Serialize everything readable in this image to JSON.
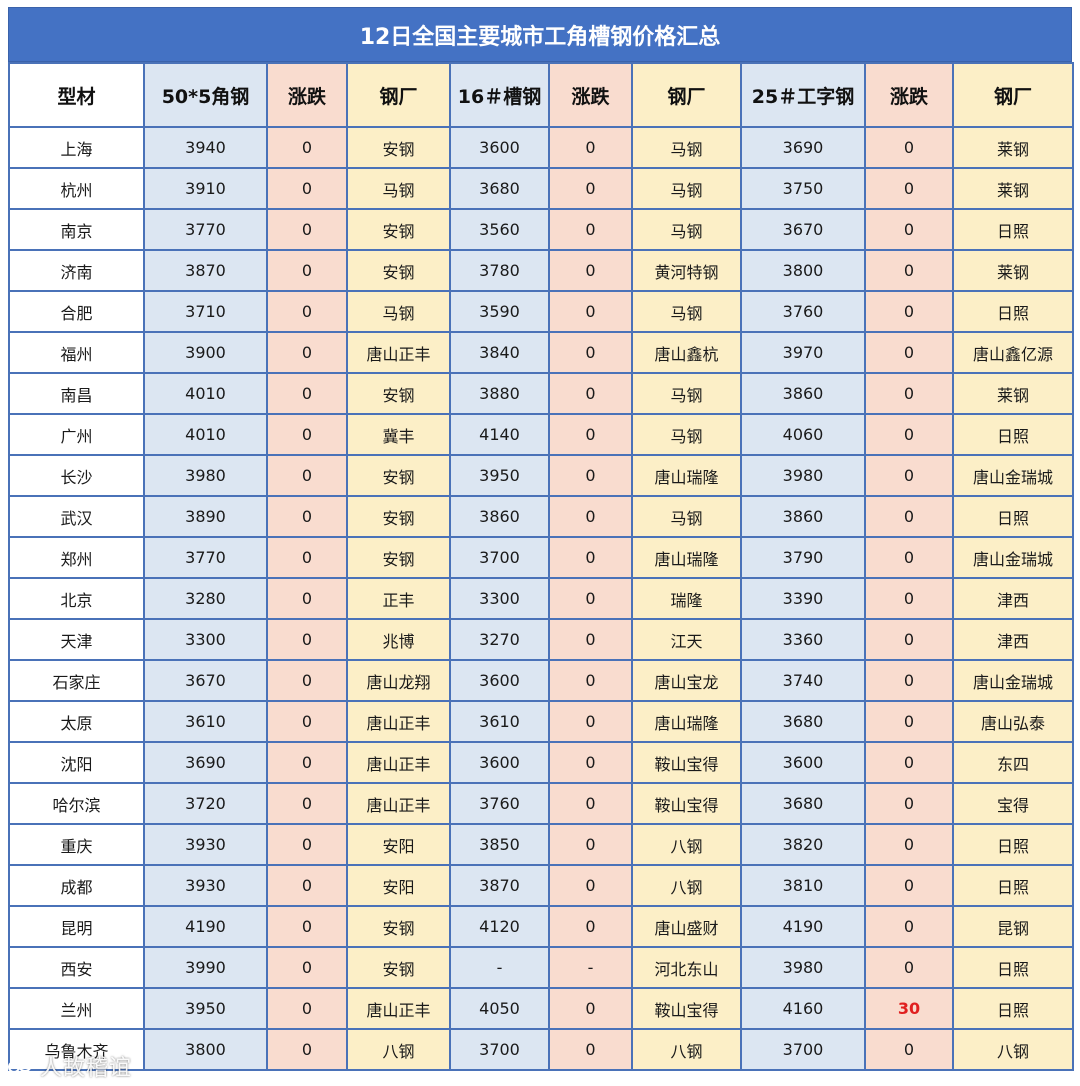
{
  "title": "12日全国主要城市工角槽钢价格汇总",
  "headers": [
    "型材",
    "50*5角钢",
    "涨跌",
    "钢厂",
    "16＃槽钢",
    "涨跌",
    "钢厂",
    "25＃工字钢",
    "涨跌",
    "钢厂"
  ],
  "rows": [
    {
      "city": "上海",
      "angle_price": "3940",
      "angle_change": "0",
      "angle_mill": "安钢",
      "channel_price": "3600",
      "channel_change": "0",
      "channel_mill": "马钢",
      "ibeam_price": "3690",
      "ibeam_change": "0",
      "ibeam_mill": "莱钢"
    },
    {
      "city": "杭州",
      "angle_price": "3910",
      "angle_change": "0",
      "angle_mill": "马钢",
      "channel_price": "3680",
      "channel_change": "0",
      "channel_mill": "马钢",
      "ibeam_price": "3750",
      "ibeam_change": "0",
      "ibeam_mill": "莱钢"
    },
    {
      "city": "南京",
      "angle_price": "3770",
      "angle_change": "0",
      "angle_mill": "安钢",
      "channel_price": "3560",
      "channel_change": "0",
      "channel_mill": "马钢",
      "ibeam_price": "3670",
      "ibeam_change": "0",
      "ibeam_mill": "日照"
    },
    {
      "city": "济南",
      "angle_price": "3870",
      "angle_change": "0",
      "angle_mill": "安钢",
      "channel_price": "3780",
      "channel_change": "0",
      "channel_mill": "黄河特钢",
      "ibeam_price": "3800",
      "ibeam_change": "0",
      "ibeam_mill": "莱钢"
    },
    {
      "city": "合肥",
      "angle_price": "3710",
      "angle_change": "0",
      "angle_mill": "马钢",
      "channel_price": "3590",
      "channel_change": "0",
      "channel_mill": "马钢",
      "ibeam_price": "3760",
      "ibeam_change": "0",
      "ibeam_mill": "日照"
    },
    {
      "city": "福州",
      "angle_price": "3900",
      "angle_change": "0",
      "angle_mill": "唐山正丰",
      "channel_price": "3840",
      "channel_change": "0",
      "channel_mill": "唐山鑫杭",
      "ibeam_price": "3970",
      "ibeam_change": "0",
      "ibeam_mill": "唐山鑫亿源"
    },
    {
      "city": "南昌",
      "angle_price": "4010",
      "angle_change": "0",
      "angle_mill": "安钢",
      "channel_price": "3880",
      "channel_change": "0",
      "channel_mill": "马钢",
      "ibeam_price": "3860",
      "ibeam_change": "0",
      "ibeam_mill": "莱钢"
    },
    {
      "city": "广州",
      "angle_price": "4010",
      "angle_change": "0",
      "angle_mill": "冀丰",
      "channel_price": "4140",
      "channel_change": "0",
      "channel_mill": "马钢",
      "ibeam_price": "4060",
      "ibeam_change": "0",
      "ibeam_mill": "日照"
    },
    {
      "city": "长沙",
      "angle_price": "3980",
      "angle_change": "0",
      "angle_mill": "安钢",
      "channel_price": "3950",
      "channel_change": "0",
      "channel_mill": "唐山瑞隆",
      "ibeam_price": "3980",
      "ibeam_change": "0",
      "ibeam_mill": "唐山金瑞城"
    },
    {
      "city": "武汉",
      "angle_price": "3890",
      "angle_change": "0",
      "angle_mill": "安钢",
      "channel_price": "3860",
      "channel_change": "0",
      "channel_mill": "马钢",
      "ibeam_price": "3860",
      "ibeam_change": "0",
      "ibeam_mill": "日照"
    },
    {
      "city": "郑州",
      "angle_price": "3770",
      "angle_change": "0",
      "angle_mill": "安钢",
      "channel_price": "3700",
      "channel_change": "0",
      "channel_mill": "唐山瑞隆",
      "ibeam_price": "3790",
      "ibeam_change": "0",
      "ibeam_mill": "唐山金瑞城"
    },
    {
      "city": "北京",
      "angle_price": "3280",
      "angle_change": "0",
      "angle_mill": "正丰",
      "channel_price": "3300",
      "channel_change": "0",
      "channel_mill": "瑞隆",
      "ibeam_price": "3390",
      "ibeam_change": "0",
      "ibeam_mill": "津西"
    },
    {
      "city": "天津",
      "angle_price": "3300",
      "angle_change": "0",
      "angle_mill": "兆博",
      "channel_price": "3270",
      "channel_change": "0",
      "channel_mill": "江天",
      "ibeam_price": "3360",
      "ibeam_change": "0",
      "ibeam_mill": "津西"
    },
    {
      "city": "石家庄",
      "angle_price": "3670",
      "angle_change": "0",
      "angle_mill": "唐山龙翔",
      "channel_price": "3600",
      "channel_change": "0",
      "channel_mill": "唐山宝龙",
      "ibeam_price": "3740",
      "ibeam_change": "0",
      "ibeam_mill": "唐山金瑞城"
    },
    {
      "city": "太原",
      "angle_price": "3610",
      "angle_change": "0",
      "angle_mill": "唐山正丰",
      "channel_price": "3610",
      "channel_change": "0",
      "channel_mill": "唐山瑞隆",
      "ibeam_price": "3680",
      "ibeam_change": "0",
      "ibeam_mill": "唐山弘泰"
    },
    {
      "city": "沈阳",
      "angle_price": "3690",
      "angle_change": "0",
      "angle_mill": "唐山正丰",
      "channel_price": "3600",
      "channel_change": "0",
      "channel_mill": "鞍山宝得",
      "ibeam_price": "3600",
      "ibeam_change": "0",
      "ibeam_mill": "东四"
    },
    {
      "city": "哈尔滨",
      "angle_price": "3720",
      "angle_change": "0",
      "angle_mill": "唐山正丰",
      "channel_price": "3760",
      "channel_change": "0",
      "channel_mill": "鞍山宝得",
      "ibeam_price": "3680",
      "ibeam_change": "0",
      "ibeam_mill": "宝得"
    },
    {
      "city": "重庆",
      "angle_price": "3930",
      "angle_change": "0",
      "angle_mill": "安阳",
      "channel_price": "3850",
      "channel_change": "0",
      "channel_mill": "八钢",
      "ibeam_price": "3820",
      "ibeam_change": "0",
      "ibeam_mill": "日照"
    },
    {
      "city": "成都",
      "angle_price": "3930",
      "angle_change": "0",
      "angle_mill": "安阳",
      "channel_price": "3870",
      "channel_change": "0",
      "channel_mill": "八钢",
      "ibeam_price": "3810",
      "ibeam_change": "0",
      "ibeam_mill": "日照"
    },
    {
      "city": "昆明",
      "angle_price": "4190",
      "angle_change": "0",
      "angle_mill": "安钢",
      "channel_price": "4120",
      "channel_change": "0",
      "channel_mill": "唐山盛财",
      "ibeam_price": "4190",
      "ibeam_change": "0",
      "ibeam_mill": "昆钢"
    },
    {
      "city": "西安",
      "angle_price": "3990",
      "angle_change": "0",
      "angle_mill": "安钢",
      "channel_price": "-",
      "channel_change": "-",
      "channel_mill": "河北东山",
      "ibeam_price": "3980",
      "ibeam_change": "0",
      "ibeam_mill": "日照"
    },
    {
      "city": "兰州",
      "angle_price": "3950",
      "angle_change": "0",
      "angle_mill": "唐山正丰",
      "channel_price": "4050",
      "channel_change": "0",
      "channel_mill": "鞍山宝得",
      "ibeam_price": "4160",
      "ibeam_change": "30",
      "ibeam_mill": "日照",
      "highlight": "ibeam_change"
    },
    {
      "city": "乌鲁木齐",
      "angle_price": "3800",
      "angle_change": "0",
      "angle_mill": "八钢",
      "channel_price": "3700",
      "channel_change": "0",
      "channel_mill": "八钢",
      "ibeam_price": "3700",
      "ibeam_change": "0",
      "ibeam_mill": "八钢"
    }
  ],
  "watermark": "人故稽谊",
  "colors": {
    "title_bg": "#4472c4",
    "border": "#4a72b8",
    "price_bg": "#dce6f2",
    "change_bg": "#f9dccf",
    "mill_bg": "#fcefc7",
    "rise_text": "#e02020"
  }
}
